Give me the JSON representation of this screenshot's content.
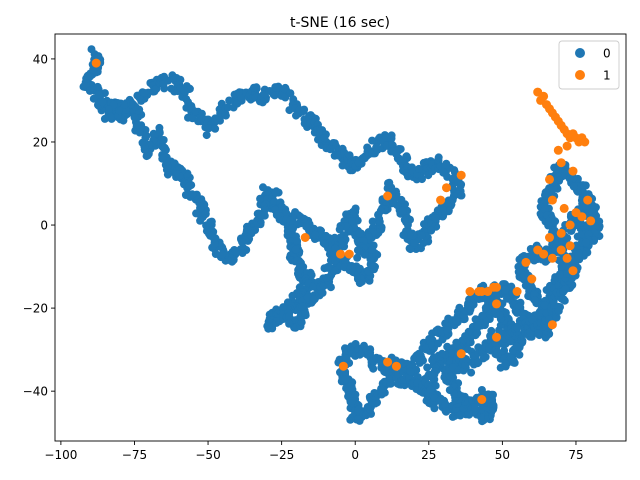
{
  "chart_data": {
    "type": "scatter",
    "title": "t-SNE (16 sec)",
    "xlabel": "",
    "ylabel": "",
    "xlim": [
      -102,
      92
    ],
    "ylim": [
      -52,
      46
    ],
    "xticks": [
      -100,
      -75,
      -50,
      -25,
      0,
      25,
      50,
      75
    ],
    "yticks": [
      -40,
      -20,
      0,
      20,
      40
    ],
    "xtick_labels": [
      "−100",
      "−75",
      "−50",
      "−25",
      "0",
      "25",
      "50",
      "75"
    ],
    "ytick_labels": [
      "−40",
      "−20",
      "0",
      "20",
      "40"
    ],
    "grid": false,
    "legend_position": "top-right",
    "series": [
      {
        "name": "0",
        "color": "#1f77b4",
        "path": [
          [
            -88,
            41
          ],
          [
            -88,
            38
          ],
          [
            -92,
            34
          ],
          [
            -85,
            30
          ],
          [
            -80,
            26
          ],
          [
            -75,
            29
          ],
          [
            -70,
            33
          ],
          [
            -64,
            35
          ],
          [
            -58,
            33
          ],
          [
            -55,
            27
          ],
          [
            -50,
            23
          ],
          [
            -46,
            27
          ],
          [
            -40,
            31
          ],
          [
            -35,
            32
          ],
          [
            -30,
            31
          ],
          [
            -23,
            33
          ],
          [
            -20,
            27
          ],
          [
            -15,
            25
          ],
          [
            -12,
            22
          ],
          [
            -8,
            19
          ],
          [
            -4,
            16
          ],
          [
            0,
            14
          ],
          [
            5,
            17
          ],
          [
            9,
            21
          ],
          [
            13,
            19
          ],
          [
            17,
            15
          ],
          [
            20,
            11
          ],
          [
            24,
            14
          ],
          [
            29,
            15
          ],
          [
            34,
            12
          ],
          [
            35,
            7
          ],
          [
            31,
            4
          ],
          [
            27,
            2
          ],
          [
            24,
            -2
          ],
          [
            20,
            -5
          ],
          [
            18,
            -2
          ],
          [
            16,
            4
          ],
          [
            12,
            9
          ],
          [
            10,
            4
          ],
          [
            8,
            0
          ],
          [
            5,
            -2
          ],
          [
            2,
            -4
          ],
          [
            0,
            -1
          ],
          [
            -1,
            3
          ],
          [
            -3,
            0
          ],
          [
            -5,
            -4
          ],
          [
            -7,
            -7
          ],
          [
            -9,
            -4
          ],
          [
            -13,
            -2
          ],
          [
            -18,
            0
          ],
          [
            -23,
            2
          ],
          [
            -27,
            5
          ],
          [
            -30,
            8
          ],
          [
            -32,
            3
          ],
          [
            -35,
            -1
          ],
          [
            -38,
            -5
          ],
          [
            -42,
            -8
          ],
          [
            -47,
            -6
          ],
          [
            -49,
            -2
          ],
          [
            -52,
            3
          ],
          [
            -55,
            7
          ],
          [
            -58,
            11
          ],
          [
            -62,
            13
          ],
          [
            -65,
            17
          ],
          [
            -67,
            22
          ],
          [
            -70,
            17
          ],
          [
            -73,
            22
          ],
          [
            -75,
            27
          ],
          [
            -80,
            29
          ],
          [
            -85,
            27
          ],
          [
            -89,
            33
          ]
        ],
        "path2": [
          [
            -28,
            8
          ],
          [
            -25,
            3
          ],
          [
            -22,
            -1
          ],
          [
            -20,
            -5
          ],
          [
            -21,
            -9
          ],
          [
            -18,
            -12
          ],
          [
            -15,
            -14
          ],
          [
            -19,
            -17
          ],
          [
            -22,
            -20
          ],
          [
            -26,
            -22
          ],
          [
            -29,
            -24
          ],
          [
            -25,
            -21
          ],
          [
            -20,
            -24
          ],
          [
            -17,
            -20
          ],
          [
            -13,
            -16
          ],
          [
            -10,
            -14
          ],
          [
            -8,
            -10
          ],
          [
            -4,
            -8
          ],
          [
            0,
            -11
          ],
          [
            4,
            -13
          ],
          [
            7,
            -9
          ],
          [
            5,
            -5
          ],
          [
            1,
            -7
          ]
        ],
        "path3": [
          [
            -5,
            -35
          ],
          [
            -3,
            -38
          ],
          [
            -1,
            -42
          ],
          [
            0,
            -46
          ],
          [
            3,
            -45
          ],
          [
            6,
            -42
          ],
          [
            9,
            -39
          ],
          [
            13,
            -37
          ],
          [
            17,
            -37
          ],
          [
            20,
            -34
          ],
          [
            23,
            -31
          ],
          [
            26,
            -28
          ],
          [
            30,
            -26
          ],
          [
            34,
            -23
          ],
          [
            37,
            -21
          ],
          [
            40,
            -18
          ],
          [
            43,
            -16
          ],
          [
            46,
            -18
          ],
          [
            49,
            -15
          ],
          [
            52,
            -16
          ],
          [
            55,
            -19
          ],
          [
            57,
            -22
          ],
          [
            60,
            -24
          ],
          [
            63,
            -22
          ],
          [
            65,
            -18
          ],
          [
            68,
            -15
          ],
          [
            71,
            -12
          ],
          [
            74,
            -10
          ],
          [
            76,
            -6
          ],
          [
            78,
            -2
          ],
          [
            80,
            2
          ],
          [
            79,
            6
          ],
          [
            76,
            9
          ],
          [
            73,
            12
          ],
          [
            70,
            14
          ],
          [
            68,
            11
          ],
          [
            66,
            8
          ],
          [
            64,
            4
          ],
          [
            66,
            0
          ],
          [
            69,
            -3
          ],
          [
            67,
            -6
          ],
          [
            64,
            -8
          ],
          [
            61,
            -6
          ],
          [
            58,
            -8
          ],
          [
            56,
            -11
          ],
          [
            58,
            -14
          ],
          [
            61,
            -16
          ],
          [
            63,
            -19
          ]
        ],
        "path4": [
          [
            -5,
            -35
          ],
          [
            -2,
            -31
          ],
          [
            2,
            -30
          ],
          [
            6,
            -33
          ],
          [
            10,
            -34
          ],
          [
            14,
            -33
          ],
          [
            18,
            -35
          ],
          [
            21,
            -38
          ],
          [
            24,
            -40
          ],
          [
            27,
            -42
          ],
          [
            30,
            -44
          ],
          [
            34,
            -45
          ],
          [
            38,
            -44
          ],
          [
            42,
            -43
          ],
          [
            45,
            -41
          ],
          [
            47,
            -44
          ],
          [
            44,
            -46
          ],
          [
            40,
            -45
          ],
          [
            36,
            -42
          ],
          [
            33,
            -39
          ],
          [
            31,
            -36
          ],
          [
            34,
            -33
          ],
          [
            38,
            -34
          ],
          [
            42,
            -31
          ],
          [
            45,
            -29
          ],
          [
            48,
            -30
          ],
          [
            51,
            -33
          ],
          [
            54,
            -31
          ],
          [
            56,
            -28
          ],
          [
            53,
            -25
          ],
          [
            50,
            -22
          ],
          [
            48,
            -19
          ],
          [
            45,
            -21
          ],
          [
            42,
            -24
          ],
          [
            39,
            -27
          ],
          [
            36,
            -29
          ],
          [
            32,
            -31
          ],
          [
            28,
            -33
          ],
          [
            25,
            -36
          ],
          [
            27,
            -39
          ]
        ],
        "path5": [
          [
            47,
            -26
          ],
          [
            50,
            -28
          ],
          [
            53,
            -26
          ],
          [
            56,
            -24
          ],
          [
            59,
            -26
          ],
          [
            61,
            -24
          ],
          [
            64,
            -26
          ],
          [
            66,
            -23
          ],
          [
            68,
            -20
          ],
          [
            70,
            -17
          ],
          [
            72,
            -14
          ],
          [
            74,
            -11
          ],
          [
            71,
            -8
          ],
          [
            68,
            -5
          ],
          [
            71,
            -3
          ],
          [
            74,
            0
          ],
          [
            76,
            3
          ],
          [
            78,
            5
          ],
          [
            81,
            3
          ],
          [
            82,
            -1
          ],
          [
            79,
            -4
          ],
          [
            76,
            -7
          ],
          [
            73,
            -10
          ],
          [
            70,
            -12
          ]
        ]
      },
      {
        "name": "1",
        "color": "#ff7f0e",
        "points": [
          [
            -88,
            39
          ],
          [
            62,
            32
          ],
          [
            63,
            30
          ],
          [
            64,
            31
          ],
          [
            65,
            29
          ],
          [
            66,
            28
          ],
          [
            67,
            27
          ],
          [
            68,
            26
          ],
          [
            69,
            25
          ],
          [
            70,
            24
          ],
          [
            71,
            23
          ],
          [
            72,
            22
          ],
          [
            73,
            21
          ],
          [
            74,
            22
          ],
          [
            75,
            21
          ],
          [
            76,
            20
          ],
          [
            77,
            21
          ],
          [
            78,
            20
          ],
          [
            69,
            18
          ],
          [
            72,
            19
          ],
          [
            70,
            15
          ],
          [
            74,
            13
          ],
          [
            66,
            11
          ],
          [
            67,
            6
          ],
          [
            71,
            4
          ],
          [
            75,
            3
          ],
          [
            77,
            2
          ],
          [
            80,
            1
          ],
          [
            79,
            6
          ],
          [
            73,
            0
          ],
          [
            70,
            -2
          ],
          [
            66,
            -3
          ],
          [
            62,
            -6
          ],
          [
            64,
            -7
          ],
          [
            67,
            -8
          ],
          [
            70,
            -6
          ],
          [
            73,
            -5
          ],
          [
            72,
            -8
          ],
          [
            74,
            -11
          ],
          [
            58,
            -9
          ],
          [
            60,
            -13
          ],
          [
            55,
            -16
          ],
          [
            48,
            -15
          ],
          [
            45,
            -16
          ],
          [
            42,
            -16
          ],
          [
            48,
            -19
          ],
          [
            48,
            -27
          ],
          [
            67,
            -24
          ],
          [
            36,
            -31
          ],
          [
            43,
            -42
          ],
          [
            11,
            -33
          ],
          [
            14,
            -34
          ],
          [
            -4,
            -34
          ],
          [
            -5,
            -7
          ],
          [
            -2,
            -7
          ],
          [
            -17,
            -3
          ],
          [
            11,
            7
          ],
          [
            29,
            6
          ],
          [
            36,
            12
          ],
          [
            31,
            9
          ],
          [
            43,
            -16
          ],
          [
            39,
            -16
          ],
          [
            47,
            -15
          ]
        ]
      }
    ]
  }
}
